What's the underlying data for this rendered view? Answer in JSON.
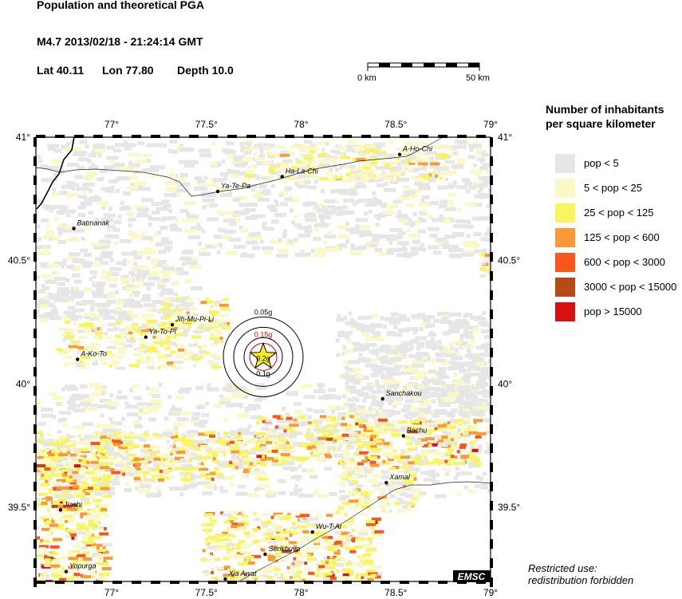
{
  "header": {
    "title": "Population and theoretical PGA",
    "event": "M4.7  2013/02/18 - 21:24:14 GMT",
    "lat_label": "Lat 40.11",
    "lon_label": "Lon 77.80",
    "depth_label": "Depth 10.0"
  },
  "scale_bar": {
    "left_label": "0 km",
    "right_label": "50 km"
  },
  "legend": {
    "title_line1": "Number of inhabitants",
    "title_line2": "per square kilometer",
    "items": [
      {
        "label": "pop < 5",
        "color": "#e6e6e6"
      },
      {
        "label": "5 < pop < 25",
        "color": "#fbf8c8"
      },
      {
        "label": "25 < pop < 125",
        "color": "#f9f55c"
      },
      {
        "label": "125 < pop < 600",
        "color": "#f99a38"
      },
      {
        "label": "600 < pop < 3000",
        "color": "#f8561c"
      },
      {
        "label": "3000 < pop < 15000",
        "color": "#b84a18"
      },
      {
        "label": "pop > 15000",
        "color": "#d91012"
      }
    ]
  },
  "map": {
    "lon_ticks": [
      "77°",
      "77.5°",
      "78°",
      "78.5°",
      "79°"
    ],
    "lat_ticks": [
      "41°",
      "40.5°",
      "40°",
      "39.5°"
    ],
    "lon_range": [
      76.6,
      79.0
    ],
    "lat_range": [
      39.2,
      41.0
    ],
    "epicenter": {
      "lon": 77.8,
      "lat": 40.11
    },
    "pga_labels": [
      "0.05g",
      "0.15g",
      "0.2g",
      "0.1g"
    ],
    "cities": [
      {
        "name": "A-Ho-Chi",
        "lon": 78.52,
        "lat": 40.93
      },
      {
        "name": "Ha-La-Chi",
        "lon": 77.9,
        "lat": 40.84
      },
      {
        "name": "Ya-Te-Pa",
        "lon": 77.56,
        "lat": 40.78
      },
      {
        "name": "Batmanak",
        "lon": 76.8,
        "lat": 40.63
      },
      {
        "name": "Jih-Mu-Pi-Li",
        "lon": 77.32,
        "lat": 40.24
      },
      {
        "name": "Ya-To-Pi",
        "lon": 77.18,
        "lat": 40.19
      },
      {
        "name": "A-Ko-To",
        "lon": 76.82,
        "lat": 40.1
      },
      {
        "name": "Sanchakou",
        "lon": 78.43,
        "lat": 39.94
      },
      {
        "name": "Bachu",
        "lon": 78.54,
        "lat": 39.79
      },
      {
        "name": "Xamal",
        "lon": 78.45,
        "lat": 39.6
      },
      {
        "name": "Jiashi",
        "lon": 76.73,
        "lat": 39.49
      },
      {
        "name": "Wu-T-Ai",
        "lon": 78.06,
        "lat": 39.4
      },
      {
        "name": "Serikbuya",
        "lon": 77.81,
        "lat": 39.31
      },
      {
        "name": "Yopurga",
        "lon": 76.76,
        "lat": 39.24
      },
      {
        "name": "Xia Awat",
        "lon": 77.6,
        "lat": 39.21
      }
    ],
    "logo": "EMSC"
  },
  "restricted": {
    "line1": "Restricted use:",
    "line2": "redistribution forbidden"
  }
}
